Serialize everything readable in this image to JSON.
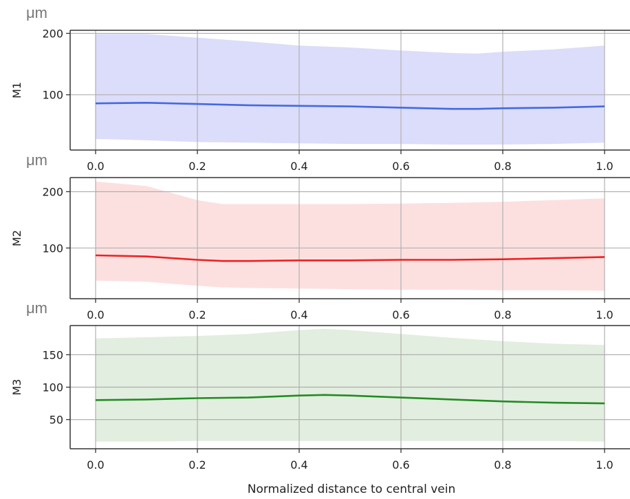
{
  "chart_data": [
    {
      "type": "area",
      "unit": "μm",
      "ylabel": "M1",
      "yticks": [
        100,
        200
      ],
      "ylim": [
        10,
        205
      ],
      "xticks": [
        "0.0",
        "0.2",
        "0.4",
        "0.6",
        "0.8",
        "1.0"
      ],
      "xlim": [
        -0.05,
        1.05
      ],
      "grid": true,
      "series": [
        {
          "color": "#4169e1",
          "band_color": "#dcdcfb",
          "x": [
            0.0,
            0.1,
            0.2,
            0.3,
            0.4,
            0.5,
            0.6,
            0.7,
            0.75,
            0.8,
            0.9,
            1.0
          ],
          "mean": [
            86,
            87,
            85,
            83,
            82,
            81,
            79,
            77,
            77,
            78,
            79,
            81
          ],
          "upper": [
            199,
            199,
            193,
            187,
            180,
            177,
            172,
            168,
            167,
            170,
            174,
            180
          ],
          "lower": [
            28,
            26,
            23,
            22,
            21,
            20,
            20,
            19,
            19,
            19,
            20,
            22
          ]
        }
      ]
    },
    {
      "type": "area",
      "unit": "μm",
      "ylabel": "M2",
      "yticks": [
        100,
        200
      ],
      "ylim": [
        10,
        225
      ],
      "xticks": [
        "0.0",
        "0.2",
        "0.4",
        "0.6",
        "0.8",
        "1.0"
      ],
      "xlim": [
        -0.05,
        1.05
      ],
      "grid": true,
      "series": [
        {
          "color": "#ee2020",
          "band_color": "#fce0e0",
          "x": [
            0.0,
            0.1,
            0.2,
            0.25,
            0.3,
            0.4,
            0.5,
            0.6,
            0.7,
            0.8,
            0.9,
            1.0
          ],
          "mean": [
            87,
            85,
            79,
            77,
            77,
            78,
            78,
            79,
            79,
            80,
            82,
            84
          ],
          "upper": [
            218,
            210,
            185,
            178,
            178,
            178,
            178,
            179,
            180,
            182,
            185,
            188
          ],
          "lower": [
            42,
            40,
            33,
            30,
            29,
            28,
            27,
            26,
            26,
            25,
            25,
            24
          ]
        }
      ]
    },
    {
      "type": "area",
      "unit": "μm",
      "ylabel": "M3",
      "yticks": [
        50,
        100,
        150
      ],
      "ylim": [
        5,
        195
      ],
      "xticks": [
        "0.0",
        "0.2",
        "0.4",
        "0.6",
        "0.8",
        "1.0"
      ],
      "xlim": [
        -0.05,
        1.05
      ],
      "grid": true,
      "xlabel": "Normalized distance to central vein",
      "series": [
        {
          "color": "#228b22",
          "band_color": "#e2eedf",
          "x": [
            0.0,
            0.1,
            0.2,
            0.3,
            0.4,
            0.45,
            0.5,
            0.6,
            0.7,
            0.8,
            0.9,
            1.0
          ],
          "mean": [
            80,
            81,
            83,
            84,
            87,
            88,
            87,
            84,
            81,
            78,
            76,
            75
          ],
          "upper": [
            175,
            177,
            179,
            182,
            188,
            190,
            188,
            182,
            176,
            171,
            167,
            165
          ],
          "lower": [
            16,
            16,
            17,
            17,
            17,
            17,
            17,
            17,
            17,
            17,
            17,
            16
          ]
        }
      ]
    }
  ]
}
